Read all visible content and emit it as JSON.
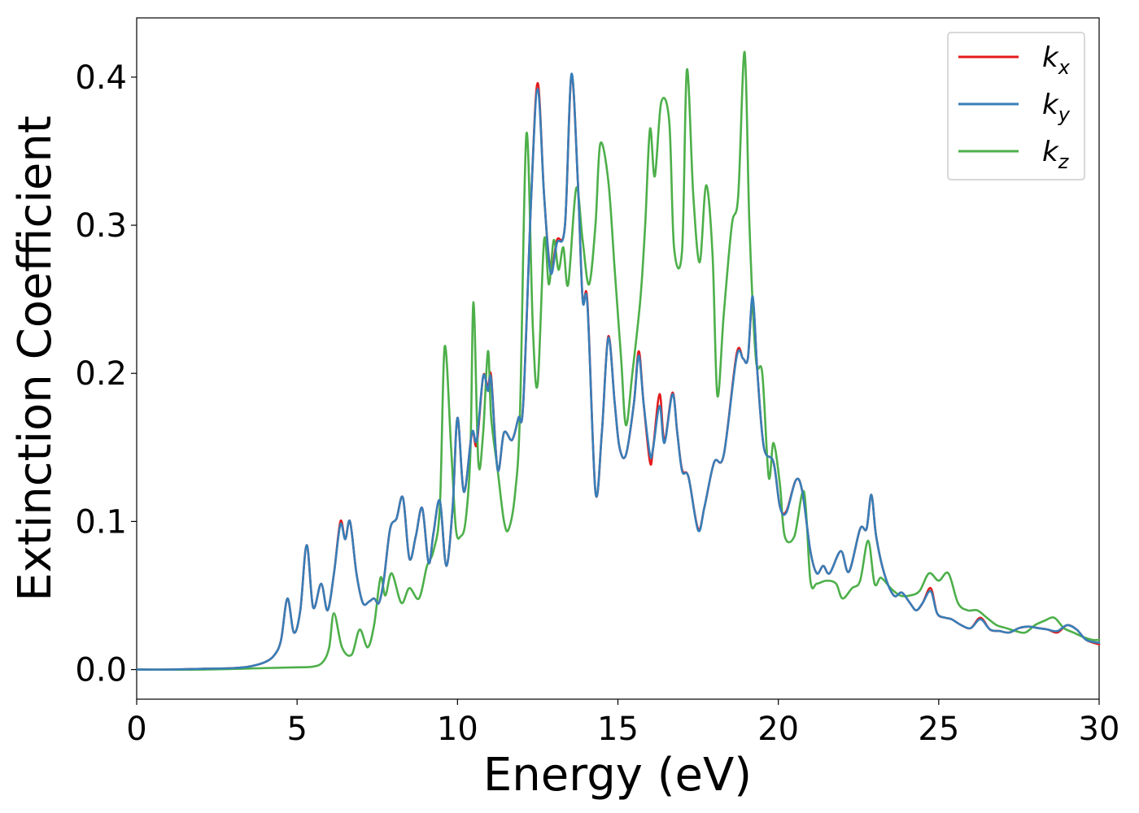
{
  "chart_data": {
    "type": "line",
    "title": "",
    "xlabel": "Energy (eV)",
    "ylabel": "Extinction Coefficient",
    "xlim": [
      0,
      30
    ],
    "ylim": [
      -0.02,
      0.44
    ],
    "xticks": [
      0,
      5,
      10,
      15,
      20,
      25,
      30
    ],
    "xtick_labels": [
      "0",
      "5",
      "10",
      "15",
      "20",
      "25",
      "30"
    ],
    "yticks": [
      0.0,
      0.1,
      0.2,
      0.3,
      0.4
    ],
    "ytick_labels": [
      "0.0",
      "0.1",
      "0.2",
      "0.3",
      "0.4"
    ],
    "grid": false,
    "legend_position": "top-right",
    "series": [
      {
        "name": "k_x",
        "label_main": "k",
        "label_sub": "x",
        "color": "#e41a1c",
        "x": [
          0,
          1,
          2,
          3,
          3.5,
          4,
          4.3,
          4.5,
          4.7,
          4.9,
          5.1,
          5.3,
          5.5,
          5.75,
          5.95,
          6.15,
          6.35,
          6.5,
          6.65,
          6.85,
          7.05,
          7.25,
          7.4,
          7.55,
          7.7,
          7.9,
          8.1,
          8.3,
          8.5,
          8.7,
          8.9,
          9.1,
          9.25,
          9.45,
          9.65,
          9.85,
          10.0,
          10.2,
          10.45,
          10.6,
          10.8,
          10.95,
          11.05,
          11.25,
          11.45,
          11.7,
          11.9,
          12.05,
          12.3,
          12.5,
          12.7,
          12.9,
          13.1,
          13.35,
          13.55,
          13.75,
          13.9,
          14.05,
          14.3,
          14.5,
          14.7,
          14.9,
          15.05,
          15.25,
          15.5,
          15.65,
          15.8,
          16.0,
          16.1,
          16.3,
          16.45,
          16.7,
          16.85,
          17.0,
          17.2,
          17.5,
          17.7,
          18.0,
          18.3,
          18.7,
          18.9,
          19.05,
          19.2,
          19.35,
          19.55,
          19.85,
          20.05,
          20.25,
          20.55,
          20.75,
          21.0,
          21.2,
          21.4,
          21.6,
          21.95,
          22.2,
          22.55,
          22.75,
          22.9,
          23.05,
          23.3,
          23.6,
          23.85,
          24.1,
          24.3,
          24.5,
          24.75,
          24.95,
          25.2,
          25.4,
          25.7,
          26.0,
          26.3,
          26.6,
          26.9,
          27.2,
          27.5,
          27.8,
          28.1,
          28.4,
          28.7,
          29.0,
          29.3,
          29.6,
          30.0
        ],
        "y": [
          0,
          0,
          0.0005,
          0.001,
          0.002,
          0.005,
          0.01,
          0.02,
          0.048,
          0.025,
          0.04,
          0.084,
          0.042,
          0.058,
          0.04,
          0.065,
          0.1,
          0.088,
          0.1,
          0.065,
          0.045,
          0.046,
          0.048,
          0.045,
          0.06,
          0.095,
          0.102,
          0.116,
          0.075,
          0.09,
          0.109,
          0.072,
          0.092,
          0.114,
          0.07,
          0.11,
          0.17,
          0.12,
          0.16,
          0.152,
          0.198,
          0.19,
          0.198,
          0.135,
          0.16,
          0.155,
          0.17,
          0.18,
          0.32,
          0.396,
          0.32,
          0.27,
          0.29,
          0.3,
          0.401,
          0.33,
          0.25,
          0.248,
          0.12,
          0.16,
          0.225,
          0.18,
          0.15,
          0.145,
          0.18,
          0.215,
          0.18,
          0.14,
          0.15,
          0.186,
          0.155,
          0.187,
          0.16,
          0.135,
          0.13,
          0.095,
          0.11,
          0.14,
          0.145,
          0.213,
          0.21,
          0.21,
          0.25,
          0.2,
          0.15,
          0.14,
          0.11,
          0.107,
          0.128,
          0.12,
          0.08,
          0.065,
          0.07,
          0.065,
          0.08,
          0.066,
          0.095,
          0.095,
          0.118,
          0.09,
          0.065,
          0.05,
          0.052,
          0.045,
          0.04,
          0.045,
          0.055,
          0.038,
          0.035,
          0.034,
          0.03,
          0.028,
          0.035,
          0.027,
          0.026,
          0.025,
          0.028,
          0.029,
          0.028,
          0.027,
          0.025,
          0.03,
          0.027,
          0.02,
          0.017
        ]
      },
      {
        "name": "k_y",
        "label_main": "k",
        "label_sub": "y",
        "color": "#377eb8",
        "x": [
          0,
          1,
          2,
          3,
          3.5,
          4,
          4.3,
          4.5,
          4.7,
          4.9,
          5.1,
          5.3,
          5.5,
          5.75,
          5.95,
          6.15,
          6.35,
          6.5,
          6.65,
          6.85,
          7.05,
          7.25,
          7.4,
          7.55,
          7.7,
          7.9,
          8.1,
          8.3,
          8.5,
          8.7,
          8.9,
          9.1,
          9.25,
          9.45,
          9.65,
          9.85,
          10.0,
          10.2,
          10.45,
          10.6,
          10.8,
          10.95,
          11.05,
          11.25,
          11.45,
          11.7,
          11.9,
          12.05,
          12.3,
          12.5,
          12.7,
          12.9,
          13.1,
          13.35,
          13.55,
          13.75,
          13.9,
          14.05,
          14.3,
          14.5,
          14.7,
          14.9,
          15.05,
          15.25,
          15.5,
          15.65,
          15.8,
          16.0,
          16.1,
          16.3,
          16.45,
          16.7,
          16.85,
          17.0,
          17.2,
          17.5,
          17.7,
          18.0,
          18.3,
          18.7,
          18.9,
          19.05,
          19.2,
          19.35,
          19.55,
          19.85,
          20.05,
          20.25,
          20.55,
          20.75,
          21.0,
          21.2,
          21.4,
          21.6,
          21.95,
          22.2,
          22.55,
          22.75,
          22.9,
          23.05,
          23.3,
          23.6,
          23.85,
          24.1,
          24.3,
          24.5,
          24.75,
          24.95,
          25.2,
          25.4,
          25.7,
          26.0,
          26.3,
          26.6,
          26.9,
          27.2,
          27.5,
          27.8,
          28.1,
          28.4,
          28.7,
          29.0,
          29.3,
          29.6,
          30.0
        ],
        "y": [
          0,
          0,
          0.0005,
          0.001,
          0.002,
          0.005,
          0.01,
          0.02,
          0.048,
          0.025,
          0.04,
          0.084,
          0.042,
          0.058,
          0.04,
          0.065,
          0.098,
          0.088,
          0.1,
          0.065,
          0.045,
          0.046,
          0.048,
          0.045,
          0.06,
          0.095,
          0.102,
          0.116,
          0.075,
          0.09,
          0.109,
          0.072,
          0.092,
          0.114,
          0.07,
          0.11,
          0.17,
          0.12,
          0.16,
          0.155,
          0.198,
          0.188,
          0.196,
          0.135,
          0.16,
          0.155,
          0.17,
          0.18,
          0.32,
          0.392,
          0.32,
          0.268,
          0.288,
          0.3,
          0.402,
          0.33,
          0.25,
          0.246,
          0.12,
          0.16,
          0.224,
          0.18,
          0.15,
          0.145,
          0.18,
          0.212,
          0.18,
          0.145,
          0.15,
          0.178,
          0.153,
          0.186,
          0.16,
          0.134,
          0.13,
          0.094,
          0.11,
          0.14,
          0.145,
          0.211,
          0.21,
          0.21,
          0.252,
          0.2,
          0.15,
          0.14,
          0.11,
          0.106,
          0.128,
          0.12,
          0.08,
          0.065,
          0.07,
          0.065,
          0.08,
          0.066,
          0.095,
          0.095,
          0.118,
          0.09,
          0.065,
          0.05,
          0.052,
          0.045,
          0.04,
          0.045,
          0.053,
          0.038,
          0.035,
          0.034,
          0.03,
          0.028,
          0.034,
          0.027,
          0.026,
          0.025,
          0.028,
          0.029,
          0.028,
          0.027,
          0.026,
          0.03,
          0.027,
          0.02,
          0.018
        ]
      },
      {
        "name": "k_z",
        "label_main": "k",
        "label_sub": "z",
        "color": "#4daf4a",
        "x": [
          0,
          2,
          4,
          5,
          5.5,
          5.8,
          6.0,
          6.15,
          6.4,
          6.7,
          6.95,
          7.2,
          7.4,
          7.6,
          7.75,
          7.95,
          8.25,
          8.5,
          8.8,
          9.05,
          9.25,
          9.45,
          9.6,
          9.8,
          9.95,
          10.1,
          10.25,
          10.4,
          10.5,
          10.65,
          10.8,
          10.95,
          11.05,
          11.25,
          11.45,
          11.6,
          11.8,
          11.95,
          12.15,
          12.35,
          12.5,
          12.7,
          12.85,
          13.0,
          13.15,
          13.3,
          13.45,
          13.7,
          13.9,
          14.1,
          14.3,
          14.45,
          14.7,
          14.9,
          15.1,
          15.25,
          15.45,
          15.7,
          15.85,
          16.0,
          16.15,
          16.35,
          16.6,
          16.75,
          17.0,
          17.15,
          17.35,
          17.55,
          17.75,
          17.95,
          18.1,
          18.3,
          18.55,
          18.75,
          18.95,
          19.1,
          19.3,
          19.5,
          19.7,
          19.85,
          20.05,
          20.2,
          20.5,
          20.8,
          21.0,
          21.2,
          21.5,
          21.8,
          22.0,
          22.3,
          22.55,
          22.8,
          23.0,
          23.2,
          23.5,
          23.8,
          24.1,
          24.4,
          24.7,
          25.0,
          25.3,
          25.6,
          25.9,
          26.2,
          26.5,
          26.8,
          27.1,
          27.4,
          27.7,
          28.0,
          28.3,
          28.6,
          28.9,
          29.2,
          29.5,
          29.8,
          30.0
        ],
        "y": [
          0,
          0,
          0.001,
          0.0015,
          0.002,
          0.005,
          0.015,
          0.038,
          0.015,
          0.01,
          0.027,
          0.015,
          0.03,
          0.062,
          0.05,
          0.065,
          0.045,
          0.055,
          0.048,
          0.07,
          0.08,
          0.11,
          0.218,
          0.15,
          0.095,
          0.09,
          0.1,
          0.145,
          0.248,
          0.14,
          0.16,
          0.215,
          0.17,
          0.135,
          0.1,
          0.095,
          0.12,
          0.175,
          0.362,
          0.23,
          0.193,
          0.29,
          0.26,
          0.29,
          0.27,
          0.285,
          0.26,
          0.325,
          0.29,
          0.26,
          0.3,
          0.355,
          0.33,
          0.27,
          0.21,
          0.165,
          0.2,
          0.25,
          0.3,
          0.365,
          0.333,
          0.383,
          0.37,
          0.285,
          0.283,
          0.405,
          0.32,
          0.275,
          0.327,
          0.28,
          0.185,
          0.24,
          0.3,
          0.32,
          0.417,
          0.3,
          0.21,
          0.2,
          0.13,
          0.153,
          0.125,
          0.09,
          0.09,
          0.12,
          0.06,
          0.058,
          0.06,
          0.058,
          0.048,
          0.055,
          0.06,
          0.087,
          0.058,
          0.062,
          0.055,
          0.05,
          0.05,
          0.053,
          0.065,
          0.06,
          0.065,
          0.045,
          0.04,
          0.04,
          0.035,
          0.03,
          0.028,
          0.026,
          0.025,
          0.03,
          0.033,
          0.035,
          0.028,
          0.025,
          0.022,
          0.02,
          0.02
        ]
      }
    ]
  }
}
